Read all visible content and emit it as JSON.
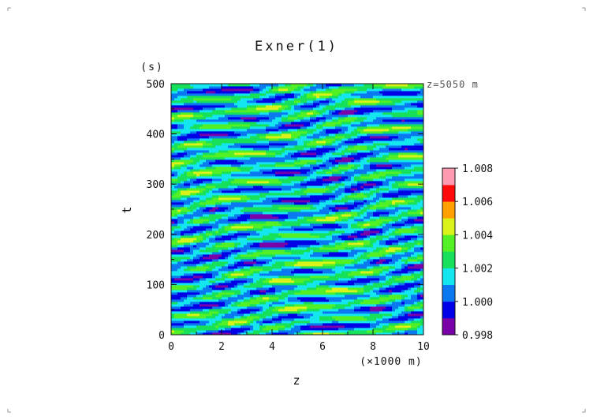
{
  "chart_data": {
    "type": "heatmap",
    "title": "Exner(1)",
    "xlabel": "z",
    "xunit": "(×1000 m)",
    "ylabel": "t",
    "yunit": "(s)",
    "annotation": "z=5050 m",
    "xlim": [
      0,
      10
    ],
    "ylim": [
      0,
      500
    ],
    "xticks": [
      "0",
      "2",
      "4",
      "6",
      "8",
      "10"
    ],
    "yticks": [
      "0",
      "100",
      "200",
      "300",
      "400",
      "500"
    ],
    "colorbar": {
      "levels": [
        0.998,
        0.999,
        1.0,
        1.001,
        1.002,
        1.003,
        1.004,
        1.005,
        1.006,
        1.007,
        1.008
      ],
      "tick_labels": [
        "0.998",
        "1.000",
        "1.002",
        "1.004",
        "1.006",
        "1.008"
      ],
      "colors": [
        "#7a00a8",
        "#0000e6",
        "#0a78f0",
        "#14e6f0",
        "#17e05a",
        "#52f024",
        "#d9f21a",
        "#ffa000",
        "#ff0a0a",
        "#ff9ab0"
      ]
    },
    "field_description_range": [
      0.998,
      1.005
    ]
  }
}
